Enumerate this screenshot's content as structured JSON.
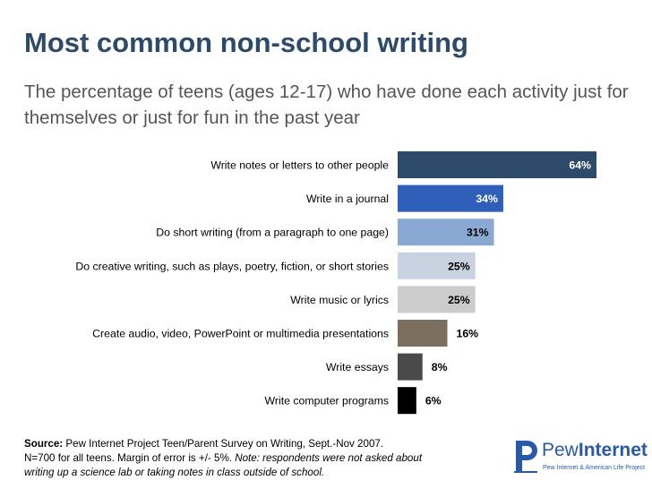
{
  "header": {
    "title": "Most common non-school writing",
    "subtitle": "The percentage of teens (ages 12-17) who have done each activity just for themselves or just for fun in the past year"
  },
  "chart_data": {
    "type": "bar",
    "orientation": "horizontal",
    "title": "Most common non-school writing",
    "xlabel": "",
    "ylabel": "",
    "xlim": [
      0,
      64
    ],
    "grid": false,
    "categories": [
      "Write notes or letters to other people",
      "Write in a journal",
      "Do short writing (from a paragraph to one page)",
      "Do creative writing, such as plays, poetry, fiction, or short stories",
      "Write music or lyrics",
      "Create audio, video, PowerPoint or multimedia presentations",
      "Write essays",
      "Write computer programs"
    ],
    "values": [
      64,
      34,
      31,
      25,
      25,
      16,
      8,
      6
    ],
    "value_labels": [
      "64%",
      "34%",
      "31%",
      "25%",
      "25%",
      "16%",
      "8%",
      "6%"
    ],
    "colors": [
      "#2e4a6b",
      "#2f5fb8",
      "#8aa9d2",
      "#c9d2e0",
      "#cccccc",
      "#7d6f5f",
      "#4a4a4a",
      "#000000"
    ]
  },
  "footer": {
    "source_label": "Source:",
    "source_text": "Pew Internet Project Teen/Parent Survey on Writing, Sept.-Nov 2007.",
    "sample_text": "N=700 for all teens. Margin of error is +/- 5%.",
    "note_text": "Note: respondents were not asked about writing up a science lab or taking notes in class outside of school."
  },
  "logo": {
    "word_light": "Pew",
    "word_bold": "Internet",
    "tagline": "Pew Internet & American Life Project",
    "color": "#2a5aa6"
  }
}
